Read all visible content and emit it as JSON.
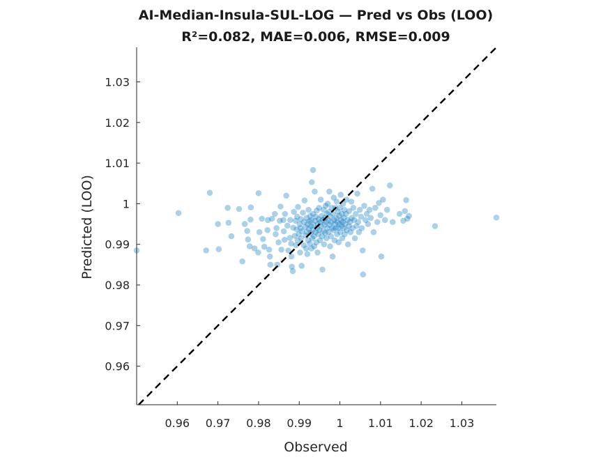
{
  "chart_data": {
    "type": "scatter",
    "title": "AI-Median-Insula-SUL-LOG — Pred vs Obs (LOO)",
    "subtitle": "R²=0.082, MAE=0.006, RMSE=0.009",
    "xlabel": "Observed",
    "ylabel": "Predicted (LOO)",
    "xlim": [
      0.95,
      1.0385
    ],
    "ylim": [
      0.9505,
      1.0385
    ],
    "xticks": [
      0.96,
      0.97,
      0.98,
      0.99,
      1,
      1.01,
      1.02,
      1.03
    ],
    "xtick_labels": [
      "0.96",
      "0.97",
      "0.98",
      "0.99",
      "1",
      "1.01",
      "1.02",
      "1.03"
    ],
    "yticks": [
      0.96,
      0.97,
      0.98,
      0.99,
      1,
      1.01,
      1.02,
      1.03
    ],
    "ytick_labels": [
      "0.96",
      "0.97",
      "0.98",
      "0.99",
      "1",
      "1.01",
      "1.02",
      "1.03"
    ],
    "grid": false,
    "reference_line": "identity (y = x), black dashed",
    "point_color": "#0072BD",
    "points": [
      [
        0.95,
        0.9885
      ],
      [
        0.9603,
        0.9977
      ],
      [
        0.9671,
        0.9885
      ],
      [
        0.968,
        1.0027
      ],
      [
        0.9702,
        0.9888
      ],
      [
        0.97,
        0.995
      ],
      [
        0.9724,
        0.999
      ],
      [
        0.9726,
        0.9953
      ],
      [
        0.9733,
        0.992
      ],
      [
        0.9752,
        0.9987
      ],
      [
        0.976,
        0.9858
      ],
      [
        0.9766,
        0.995
      ],
      [
        0.9772,
        0.9933
      ],
      [
        0.9774,
        0.9912
      ],
      [
        0.9778,
        0.9895
      ],
      [
        0.978,
        0.9961
      ],
      [
        0.9781,
        0.9991
      ],
      [
        0.979,
        0.989
      ],
      [
        0.9799,
        0.988
      ],
      [
        0.9802,
        0.993
      ],
      [
        0.98,
        1.0026
      ],
      [
        0.9808,
        0.9963
      ],
      [
        0.9811,
        0.9913
      ],
      [
        0.9814,
        0.9894
      ],
      [
        0.9822,
        0.9935
      ],
      [
        0.9823,
        0.996
      ],
      [
        0.9828,
        0.987
      ],
      [
        0.9829,
        0.985
      ],
      [
        0.9826,
        0.9887
      ],
      [
        0.9833,
        0.9963
      ],
      [
        0.984,
        0.9975
      ],
      [
        0.9842,
        0.9925
      ],
      [
        0.9844,
        0.994
      ],
      [
        0.9846,
        0.985
      ],
      [
        0.9849,
        0.9905
      ],
      [
        0.9852,
        0.9958
      ],
      [
        0.9854,
        0.9993
      ],
      [
        0.9856,
        0.9887
      ],
      [
        0.9861,
        0.996
      ],
      [
        0.9862,
        0.9932
      ],
      [
        0.9864,
        0.9911
      ],
      [
        0.9865,
        0.9975
      ],
      [
        0.9868,
        1.002
      ],
      [
        0.9871,
        0.9946
      ],
      [
        0.9873,
        0.9885
      ],
      [
        0.9877,
        0.9916
      ],
      [
        0.9878,
        0.996
      ],
      [
        0.988,
        0.9902
      ],
      [
        0.9881,
        0.987
      ],
      [
        0.9882,
        0.9845
      ],
      [
        0.9884,
        0.9834
      ],
      [
        0.9885,
        0.9941
      ],
      [
        0.9887,
        0.998
      ],
      [
        0.9889,
        0.9921
      ],
      [
        0.9891,
        0.9958
      ],
      [
        0.9892,
        0.9898
      ],
      [
        0.9894,
        0.9937
      ],
      [
        0.9895,
        0.9968
      ],
      [
        0.9896,
        0.991
      ],
      [
        0.9897,
        0.9992
      ],
      [
        0.9899,
        0.9925
      ],
      [
        0.9901,
        0.995
      ],
      [
        0.9902,
        0.988
      ],
      [
        0.9903,
        0.994
      ],
      [
        0.9904,
        0.9962
      ],
      [
        0.9905,
        0.9915
      ],
      [
        0.9906,
        0.9847
      ],
      [
        0.9907,
        0.9932
      ],
      [
        0.9909,
        0.9978
      ],
      [
        0.9911,
        0.9898
      ],
      [
        0.9912,
        0.9955
      ],
      [
        0.9913,
        1.0008
      ],
      [
        0.9915,
        0.9943
      ],
      [
        0.9916,
        0.9922
      ],
      [
        0.9917,
        0.989
      ],
      [
        0.9918,
        0.9965
      ],
      [
        0.9919,
        0.993
      ],
      [
        0.992,
        0.9876
      ],
      [
        0.9921,
        0.995
      ],
      [
        0.9922,
        0.991
      ],
      [
        0.9923,
        0.9985
      ],
      [
        0.9924,
        0.9938
      ],
      [
        0.9925,
        0.9957
      ],
      [
        0.9926,
        0.9902
      ],
      [
        0.9927,
        0.997
      ],
      [
        0.9928,
        0.9928
      ],
      [
        0.9929,
        0.9945
      ],
      [
        0.993,
        0.996
      ],
      [
        0.993,
        0.989
      ],
      [
        0.9931,
        1.0053
      ],
      [
        0.9932,
        0.9915
      ],
      [
        0.9933,
        0.9935
      ],
      [
        0.9934,
        1.0083
      ],
      [
        0.9934,
        0.9975
      ],
      [
        0.9935,
        0.9948
      ],
      [
        0.9936,
        0.992
      ],
      [
        0.9937,
        0.9895
      ],
      [
        0.9938,
        1.003
      ],
      [
        0.9939,
        0.9958
      ],
      [
        0.994,
        0.993
      ],
      [
        0.9941,
        0.9968
      ],
      [
        0.9942,
        0.9905
      ],
      [
        0.9943,
        0.9983
      ],
      [
        0.9944,
        0.994
      ],
      [
        0.9945,
        0.988
      ],
      [
        0.9946,
        0.995
      ],
      [
        0.9947,
        0.9925
      ],
      [
        0.9948,
        0.9962
      ],
      [
        0.9949,
        0.999
      ],
      [
        0.995,
        0.9935
      ],
      [
        0.9951,
        0.991
      ],
      [
        0.9952,
        0.9955
      ],
      [
        0.9953,
        1.001
      ],
      [
        0.9954,
        0.9945
      ],
      [
        0.9955,
        0.997
      ],
      [
        0.9956,
        0.992
      ],
      [
        0.9957,
        0.9838
      ],
      [
        0.9958,
        0.996
      ],
      [
        0.9959,
        0.9933
      ],
      [
        0.996,
        0.9985
      ],
      [
        0.9961,
        0.99
      ],
      [
        0.9962,
        0.9948
      ],
      [
        0.9963,
        0.9965
      ],
      [
        0.9964,
        0.9928
      ],
      [
        0.9965,
        0.9995
      ],
      [
        0.9966,
        0.9955
      ],
      [
        0.9967,
        0.9915
      ],
      [
        0.9968,
        0.9975
      ],
      [
        0.9969,
        0.994
      ],
      [
        0.997,
        1.0
      ],
      [
        0.9971,
        0.996
      ],
      [
        0.9972,
        0.993
      ],
      [
        0.9973,
        0.998
      ],
      [
        0.9974,
        1.003
      ],
      [
        0.9975,
        0.9948
      ],
      [
        0.9976,
        0.9895
      ],
      [
        0.9977,
        0.9968
      ],
      [
        0.9978,
        0.992
      ],
      [
        0.9979,
        0.9955
      ],
      [
        0.998,
        0.999
      ],
      [
        0.9981,
        0.994
      ],
      [
        0.9982,
        0.987
      ],
      [
        0.9983,
        0.9975
      ],
      [
        0.9984,
        0.9935
      ],
      [
        0.9985,
        1.0015
      ],
      [
        0.9986,
        0.996
      ],
      [
        0.9987,
        0.991
      ],
      [
        0.9988,
        0.995
      ],
      [
        0.9989,
        0.999
      ],
      [
        0.999,
        0.994
      ],
      [
        0.9991,
        0.9965
      ],
      [
        0.9992,
        1.0005
      ],
      [
        0.9993,
        0.9925
      ],
      [
        0.9994,
        0.9955
      ],
      [
        0.9995,
        0.998
      ],
      [
        0.9996,
        0.994
      ],
      [
        0.9997,
        0.9905
      ],
      [
        0.9998,
        0.997
      ],
      [
        0.9999,
        0.995
      ],
      [
        1.0,
        0.999
      ],
      [
        1.0001,
        0.993
      ],
      [
        1.0002,
        1.0022
      ],
      [
        1.0003,
        0.996
      ],
      [
        1.0004,
        0.9945
      ],
      [
        1.0005,
        0.9975
      ],
      [
        1.0006,
        0.9915
      ],
      [
        1.0007,
        0.9955
      ],
      [
        1.0008,
        1.0
      ],
      [
        1.0009,
        0.994
      ],
      [
        1.001,
        0.9965
      ],
      [
        1.0011,
        0.9985
      ],
      [
        1.0012,
        0.9925
      ],
      [
        1.0013,
        0.995
      ],
      [
        1.0015,
        0.9975
      ],
      [
        1.0016,
        1.001
      ],
      [
        1.0017,
        0.9935
      ],
      [
        1.0019,
        0.996
      ],
      [
        1.002,
        0.99
      ],
      [
        1.0022,
        0.9945
      ],
      [
        1.0023,
        0.9982
      ],
      [
        1.0025,
        0.9955
      ],
      [
        1.0026,
        0.993
      ],
      [
        1.0028,
        1.0005
      ],
      [
        1.0029,
        0.9965
      ],
      [
        1.0031,
        0.994
      ],
      [
        1.0033,
        0.999
      ],
      [
        1.0035,
        0.996
      ],
      [
        1.0037,
        0.9915
      ],
      [
        1.0039,
        0.9975
      ],
      [
        1.0041,
        0.9945
      ],
      [
        1.0043,
        1.0025
      ],
      [
        1.0045,
        0.9955
      ],
      [
        1.0047,
        0.993
      ],
      [
        1.0049,
        0.9985
      ],
      [
        1.0052,
        0.9968
      ],
      [
        1.0054,
        0.994
      ],
      [
        1.0056,
        0.9885
      ],
      [
        1.0057,
        0.9826
      ],
      [
        1.006,
        0.9995
      ],
      [
        1.0063,
        0.996
      ],
      [
        1.0066,
        0.9975
      ],
      [
        1.0069,
        0.995
      ],
      [
        1.0073,
        0.9985
      ],
      [
        1.0076,
        0.9965
      ],
      [
        1.008,
        1.0037
      ],
      [
        1.0083,
        0.993
      ],
      [
        1.0087,
        0.999
      ],
      [
        1.0092,
        0.9955
      ],
      [
        1.0096,
        1.0002
      ],
      [
        1.01,
        0.9972
      ],
      [
        1.0102,
        0.987
      ],
      [
        1.0106,
        1.001
      ],
      [
        1.0111,
        0.996
      ],
      [
        1.0116,
        0.9985
      ],
      [
        1.0123,
        1.0045
      ],
      [
        1.013,
        0.9955
      ],
      [
        1.0147,
        0.9975
      ],
      [
        1.0156,
        0.9958
      ],
      [
        1.016,
        0.9982
      ],
      [
        1.0163,
        1.0009
      ],
      [
        1.0166,
        0.9963
      ],
      [
        1.017,
        0.997
      ],
      [
        1.0234,
        0.9945
      ],
      [
        1.0385,
        0.9966
      ]
    ]
  }
}
